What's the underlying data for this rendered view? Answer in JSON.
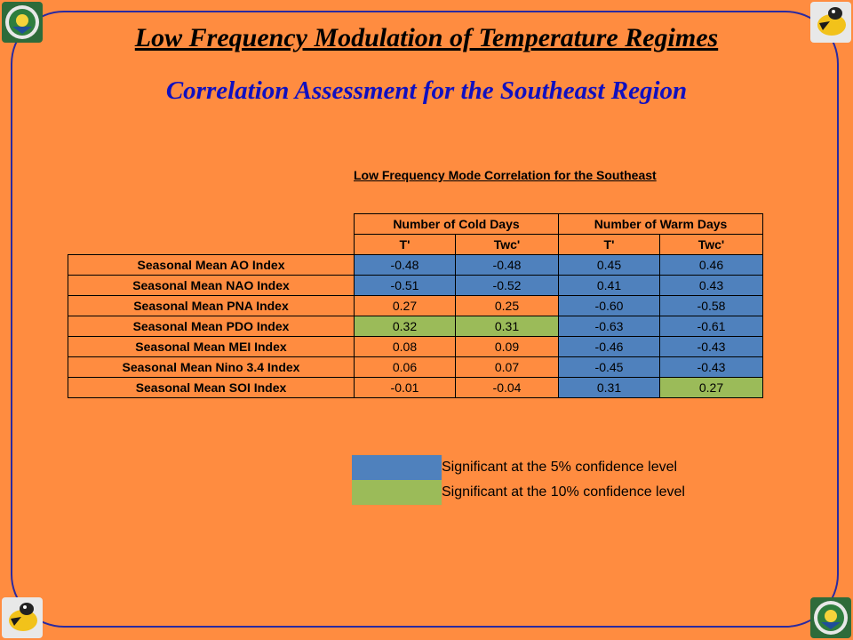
{
  "title": "Low Frequency Modulation of Temperature Regimes",
  "subtitle": "Correlation Assessment for the Southeast Region",
  "table": {
    "caption": "Low Frequency Mode Correlation for the Southeast",
    "group_headers": [
      "Number of Cold Days",
      "Number of Warm Days"
    ],
    "sub_headers": [
      "T'",
      "Twc'",
      "T'",
      "Twc'"
    ],
    "rows": [
      {
        "label": "Seasonal Mean AO Index",
        "values": [
          "-0.48",
          "-0.48",
          "0.45",
          "0.46"
        ],
        "sig": [
          "5",
          "5",
          "5",
          "5"
        ]
      },
      {
        "label": "Seasonal Mean NAO Index",
        "values": [
          "-0.51",
          "-0.52",
          "0.41",
          "0.43"
        ],
        "sig": [
          "5",
          "5",
          "5",
          "5"
        ]
      },
      {
        "label": "Seasonal Mean PNA Index",
        "values": [
          "0.27",
          "0.25",
          "-0.60",
          "-0.58"
        ],
        "sig": [
          "",
          "",
          "5",
          "5"
        ]
      },
      {
        "label": "Seasonal Mean PDO Index",
        "values": [
          "0.32",
          "0.31",
          "-0.63",
          "-0.61"
        ],
        "sig": [
          "10",
          "10",
          "5",
          "5"
        ]
      },
      {
        "label": "Seasonal Mean MEI Index",
        "values": [
          "0.08",
          "0.09",
          "-0.46",
          "-0.43"
        ],
        "sig": [
          "",
          "",
          "5",
          "5"
        ]
      },
      {
        "label": "Seasonal Mean Nino 3.4 Index",
        "values": [
          "0.06",
          "0.07",
          "-0.45",
          "-0.43"
        ],
        "sig": [
          "",
          "",
          "5",
          "5"
        ]
      },
      {
        "label": "Seasonal Mean SOI Index",
        "values": [
          "-0.01",
          "-0.04",
          "0.31",
          "0.27"
        ],
        "sig": [
          "",
          "",
          "5",
          "10"
        ]
      }
    ]
  },
  "legend": {
    "sig5": "Significant at the 5% confidence level",
    "sig10": "Significant at the 10% confidence level"
  },
  "colors": {
    "background": "#FF8C40",
    "sig5": "#4F81BD",
    "sig10": "#9BBB59",
    "subtitle": "#1010C0"
  },
  "logos": {
    "top_left": "doe-seal-icon",
    "top_right": "georgia-tech-yellow-jacket-icon",
    "bottom_left": "georgia-tech-yellow-jacket-icon",
    "bottom_right": "doe-seal-icon"
  }
}
